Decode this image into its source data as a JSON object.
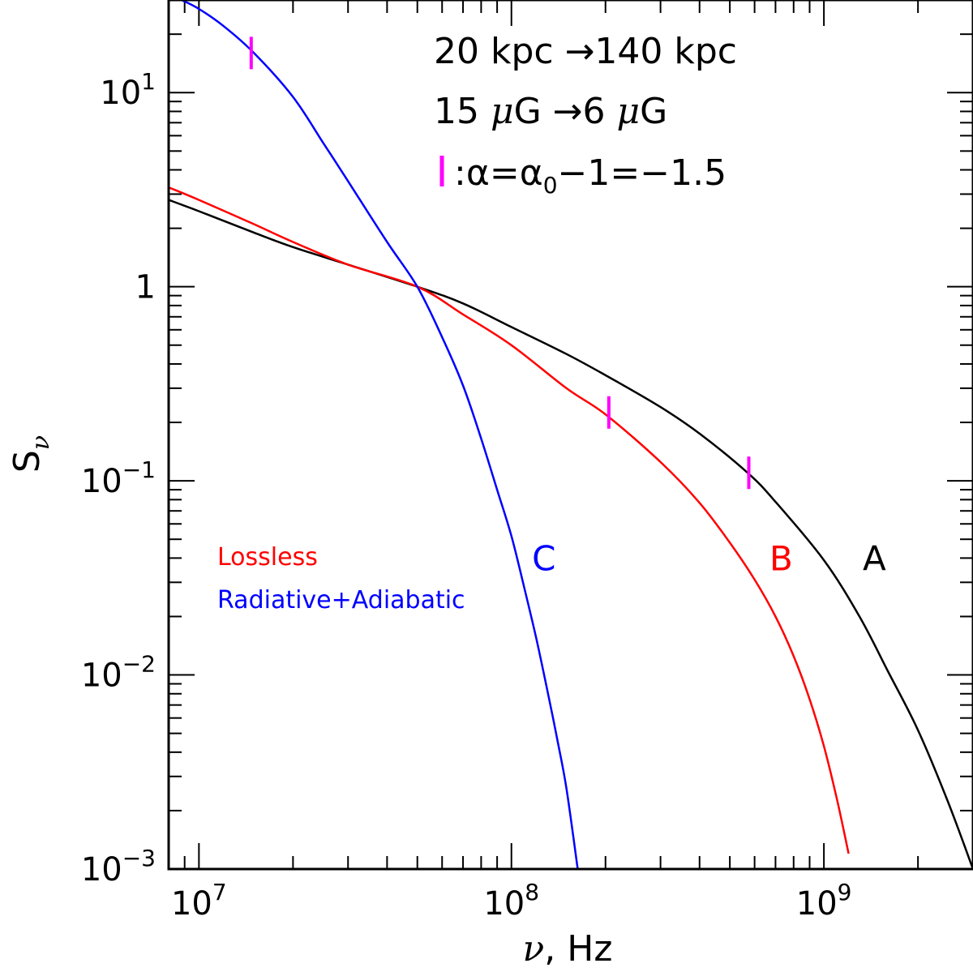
{
  "chart_data": {
    "type": "line",
    "title": "",
    "xlabel": "ν, Hz",
    "ylabel": "Sν",
    "x_scale": "log",
    "y_scale": "log",
    "xlim": [
      8000000.0,
      3000000000.0
    ],
    "ylim": [
      0.001,
      30
    ],
    "grid": false,
    "x_ticks": [
      {
        "value": 10000000.0,
        "base": "10",
        "exp": "7"
      },
      {
        "value": 100000000.0,
        "base": "10",
        "exp": "8"
      },
      {
        "value": 1000000000.0,
        "base": "10",
        "exp": "9"
      }
    ],
    "y_ticks": [
      {
        "value": 0.001,
        "base": "10",
        "exp": "−3"
      },
      {
        "value": 0.01,
        "base": "10",
        "exp": "−2"
      },
      {
        "value": 0.1,
        "base": "10",
        "exp": "−1"
      },
      {
        "value": 1,
        "base": "1",
        "exp": ""
      },
      {
        "value": 10,
        "base": "10",
        "exp": "1"
      }
    ],
    "series": [
      {
        "id": "A",
        "label": "A",
        "color": "#000000",
        "x": [
          8000000.0,
          10000000.0,
          15000000.0,
          20000000.0,
          30000000.0,
          50000000.0,
          70000000.0,
          100000000.0,
          150000000.0,
          200000000.0,
          300000000.0,
          400000000.0,
          570000000.0,
          700000000.0,
          1000000000.0,
          1300000000.0,
          1600000000.0,
          2000000000.0,
          2500000000.0,
          3000000000.0
        ],
        "y": [
          2.8,
          2.45,
          1.9,
          1.6,
          1.3,
          1.0,
          0.82,
          0.62,
          0.45,
          0.35,
          0.24,
          0.175,
          0.11,
          0.078,
          0.039,
          0.02,
          0.0105,
          0.0052,
          0.0022,
          0.001
        ]
      },
      {
        "id": "B",
        "label": "B",
        "color": "#ff0000",
        "x": [
          8000000.0,
          10000000.0,
          15000000.0,
          20000000.0,
          30000000.0,
          50000000.0,
          70000000.0,
          100000000.0,
          150000000.0,
          200000000.0,
          300000000.0,
          400000000.0,
          500000000.0,
          600000000.0,
          700000000.0,
          800000000.0,
          900000000.0,
          1000000000.0,
          1100000000.0,
          1200000000.0
        ],
        "y": [
          3.25,
          2.8,
          2.1,
          1.7,
          1.3,
          1.0,
          0.72,
          0.5,
          0.3,
          0.22,
          0.125,
          0.077,
          0.048,
          0.031,
          0.02,
          0.0125,
          0.0075,
          0.0043,
          0.0023,
          0.0012
        ]
      },
      {
        "id": "C",
        "label": "C",
        "color": "#0000ff",
        "x": [
          8800000.0,
          10000000.0,
          12000000.0,
          15000000.0,
          20000000.0,
          25000000.0,
          30000000.0,
          40000000.0,
          50000000.0,
          60000000.0,
          70000000.0,
          80000000.0,
          90000000.0,
          100000000.0,
          110000000.0,
          120000000.0,
          130000000.0,
          140000000.0,
          150000000.0,
          163000000.0
        ],
        "y": [
          30,
          27,
          22,
          16,
          9.5,
          5.5,
          3.5,
          1.7,
          1.0,
          0.55,
          0.31,
          0.165,
          0.09,
          0.052,
          0.028,
          0.0155,
          0.0085,
          0.0047,
          0.0026,
          0.001
        ]
      }
    ],
    "markers": {
      "color": "#ff00ff",
      "points": [
        {
          "x": 14700000.0,
          "y": 16.0
        },
        {
          "x": 205000000.0,
          "y": 0.225
        },
        {
          "x": 575000000.0,
          "y": 0.11
        }
      ]
    },
    "annotations": {
      "line1": "20 kpc →140 kpc",
      "line2_pre": "15 ",
      "line2_mu1": "μ",
      "line2_mid": "G →6 ",
      "line2_mu2": "μ",
      "line2_post": "G",
      "line3_a": ":α=α",
      "line3_sub": "0",
      "line3_b": "−1=−1.5"
    },
    "legend": {
      "placement": "left-center",
      "items": [
        {
          "text": "Lossless",
          "color": "#ff0000"
        },
        {
          "text": "Radiative+Adiabatic",
          "color": "#0000ff"
        }
      ]
    },
    "curve_labels": [
      {
        "text": "C",
        "color": "#0000ff",
        "x": 127000000.0,
        "y": 0.04
      },
      {
        "text": "B",
        "color": "#ff0000",
        "x": 730000000.0,
        "y": 0.04
      },
      {
        "text": "A",
        "color": "#000000",
        "x": 1450000000.0,
        "y": 0.04
      }
    ]
  }
}
